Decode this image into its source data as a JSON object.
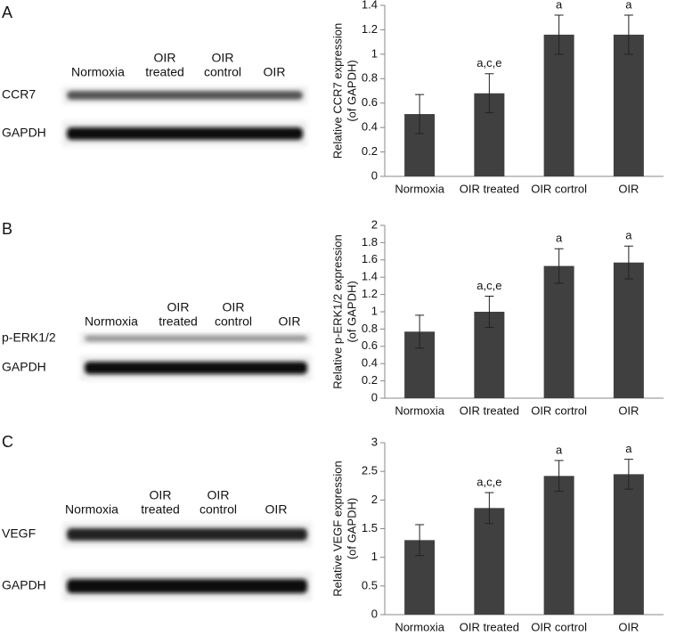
{
  "blots": [
    {
      "letter": "A",
      "lanes": [
        [
          "Normoxia"
        ],
        [
          "OIR",
          "treated"
        ],
        [
          "OIR",
          "control"
        ],
        [
          "OIR"
        ]
      ],
      "rows": [
        "CCR7",
        "GAPDH"
      ]
    },
    {
      "letter": "B",
      "lanes": [
        [
          "Normoxia"
        ],
        [
          "OIR",
          "treated"
        ],
        [
          "OIR",
          "control"
        ],
        [
          "OIR"
        ]
      ],
      "rows": [
        "p-ERK1/2",
        "GAPDH"
      ]
    },
    {
      "letter": "C",
      "lanes": [
        [
          "Normoxia"
        ],
        [
          "OIR",
          "treated"
        ],
        [
          "OIR",
          "control"
        ],
        [
          "OIR"
        ]
      ],
      "rows": [
        "VEGF",
        "GAPDH"
      ]
    }
  ],
  "chart_data": [
    {
      "type": "bar",
      "ylabel": [
        "Relative CCR7 expression",
        "(of GAPDH)"
      ],
      "categories": [
        "Normoxia",
        "OIR treated",
        "OIR cortrol",
        "OIR"
      ],
      "values": [
        0.51,
        0.68,
        1.16,
        1.16
      ],
      "errors": [
        0.16,
        0.16,
        0.16,
        0.16
      ],
      "annotations": [
        null,
        "a,c,e",
        "a",
        "a"
      ],
      "color": "#404040",
      "ylim": [
        0,
        1.4
      ],
      "yticks": [
        0,
        0.2,
        0.4,
        0.6,
        0.8,
        1,
        1.2,
        1.4
      ]
    },
    {
      "type": "bar",
      "ylabel": [
        "Relative p-ERK1/2 expression",
        "(of GAPDH)"
      ],
      "categories": [
        "Normoxia",
        "OIR treated",
        "OIR cortrol",
        "OIR"
      ],
      "values": [
        0.77,
        1.0,
        1.53,
        1.57
      ],
      "errors": [
        0.19,
        0.18,
        0.2,
        0.19
      ],
      "annotations": [
        null,
        "a,c,e",
        "a",
        "a"
      ],
      "color": "#404040",
      "ylim": [
        0,
        2
      ],
      "yticks": [
        0,
        0.2,
        0.4,
        0.6,
        0.8,
        1,
        1.2,
        1.4,
        1.6,
        1.8,
        2
      ]
    },
    {
      "type": "bar",
      "ylabel": [
        "Relative VEGF expression",
        "(of GAPDH)"
      ],
      "categories": [
        "Normoxia",
        "OIR treated",
        "OIR cortrol",
        "OIR"
      ],
      "values": [
        1.3,
        1.86,
        2.42,
        2.45
      ],
      "errors": [
        0.27,
        0.27,
        0.27,
        0.26
      ],
      "annotations": [
        null,
        "a,c,e",
        "a",
        "a"
      ],
      "color": "#404040",
      "ylim": [
        0,
        3
      ],
      "yticks": [
        0,
        0.5,
        1,
        1.5,
        2,
        2.5,
        3
      ]
    }
  ]
}
